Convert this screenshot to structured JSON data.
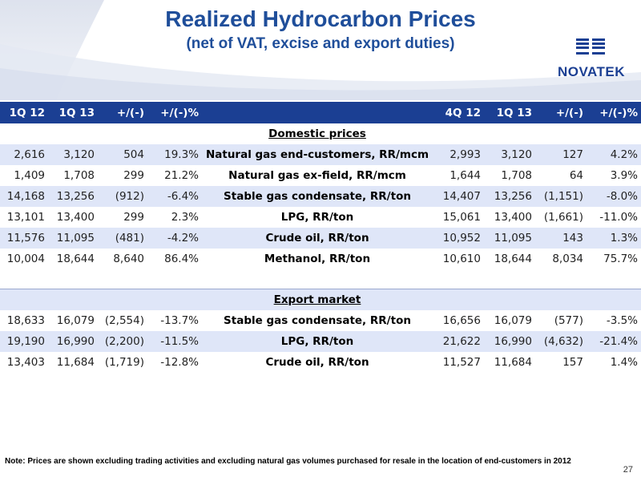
{
  "header": {
    "title": "Realized Hydrocarbon Prices",
    "subtitle": "(net of VAT, excise and export duties)",
    "logo_text": "NOVATEK"
  },
  "table": {
    "columns_left": [
      "1Q 12",
      "1Q 13",
      "+/(-)",
      "+/(-)%"
    ],
    "columns_right": [
      "4Q 12",
      "1Q 13",
      "+/(-)",
      "+/(-)%"
    ],
    "domestic_title": "Domestic prices",
    "domestic_rows": [
      {
        "left": [
          "2,616",
          "3,120",
          "504",
          "19.3%"
        ],
        "label": "Natural gas end-customers, RR/mcm",
        "right": [
          "2,993",
          "3,120",
          "127",
          "4.2%"
        ]
      },
      {
        "left": [
          "1,409",
          "1,708",
          "299",
          "21.2%"
        ],
        "label": "Natural gas ex-field, RR/mcm",
        "right": [
          "1,644",
          "1,708",
          "64",
          "3.9%"
        ]
      },
      {
        "left": [
          "14,168",
          "13,256",
          "(912)",
          "-6.4%"
        ],
        "label": "Stable gas condensate, RR/ton",
        "right": [
          "14,407",
          "13,256",
          "(1,151)",
          "-8.0%"
        ]
      },
      {
        "left": [
          "13,101",
          "13,400",
          "299",
          "2.3%"
        ],
        "label": "LPG, RR/ton",
        "right": [
          "15,061",
          "13,400",
          "(1,661)",
          "-11.0%"
        ]
      },
      {
        "left": [
          "11,576",
          "11,095",
          "(481)",
          "-4.2%"
        ],
        "label": "Crude oil, RR/ton",
        "right": [
          "10,952",
          "11,095",
          "143",
          "1.3%"
        ]
      },
      {
        "left": [
          "10,004",
          "18,644",
          "8,640",
          "86.4%"
        ],
        "label": "Methanol, RR/ton",
        "right": [
          "10,610",
          "18,644",
          "8,034",
          "75.7%"
        ]
      }
    ],
    "export_title": "Export market",
    "export_rows": [
      {
        "left": [
          "18,633",
          "16,079",
          "(2,554)",
          "-13.7%"
        ],
        "label": "Stable gas condensate, RR/ton",
        "right": [
          "16,656",
          "16,079",
          "(577)",
          "-3.5%"
        ]
      },
      {
        "left": [
          "19,190",
          "16,990",
          "(2,200)",
          "-11.5%"
        ],
        "label": "LPG, RR/ton",
        "right": [
          "21,622",
          "16,990",
          "(4,632)",
          "-21.4%"
        ]
      },
      {
        "left": [
          "13,403",
          "11,684",
          "(1,719)",
          "-12.8%"
        ],
        "label": "Crude oil, RR/ton",
        "right": [
          "11,527",
          "11,684",
          "157",
          "1.4%"
        ]
      }
    ]
  },
  "footer": {
    "note": "Note: Prices are shown excluding trading activities and excluding natural gas volumes purchased for resale in the location of end-customers in 2012",
    "page_number": "27"
  },
  "colors": {
    "header_blue": "#1b3f93",
    "title_blue": "#1f4e9a",
    "row_shade": "#dfe6f8"
  }
}
